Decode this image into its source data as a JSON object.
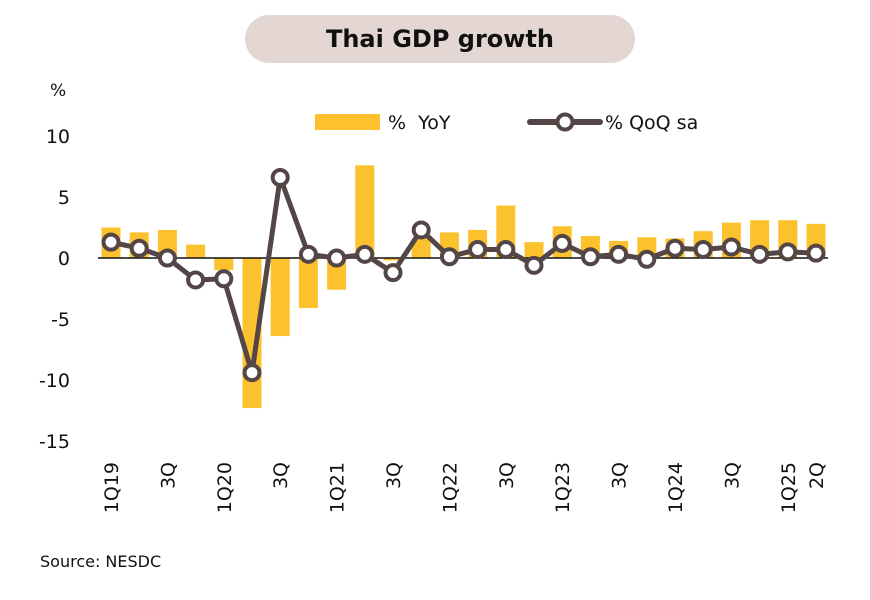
{
  "title": "Thai GDP growth",
  "source": "Source: NESDC",
  "colors": {
    "bar": "#fcc22d",
    "line": "#544646",
    "marker_fill": "#ffffff",
    "axis": "#111111"
  },
  "chart_data": {
    "type": "bar",
    "title": "Thai GDP growth",
    "ylabel": "%",
    "ylim": [
      -15,
      10
    ],
    "yticks": [
      10,
      5,
      0,
      -5,
      -10,
      -15
    ],
    "legend_position": "top",
    "quarters": [
      "1Q19",
      "2Q19",
      "3Q19",
      "4Q19",
      "1Q20",
      "2Q20",
      "3Q20",
      "4Q20",
      "1Q21",
      "2Q21",
      "3Q21",
      "4Q21",
      "1Q22",
      "2Q22",
      "3Q22",
      "4Q22",
      "1Q23",
      "2Q23",
      "3Q23",
      "4Q23",
      "1Q24",
      "2Q24",
      "3Q24",
      "4Q24",
      "1Q25",
      "2Q25"
    ],
    "x_tick_labels": [
      "1Q19",
      "",
      "3Q",
      "",
      "1Q20",
      "",
      "3Q",
      "",
      "1Q21",
      "",
      "3Q",
      "",
      "1Q22",
      "",
      "3Q",
      "",
      "1Q23",
      "",
      "3Q",
      "",
      "1Q24",
      "",
      "3Q",
      "",
      "1Q25",
      "2Q"
    ],
    "series": [
      {
        "name": "%  YoY",
        "type": "bar",
        "values": [
          2.5,
          2.1,
          2.3,
          1.1,
          -1.0,
          -12.3,
          -6.4,
          -4.1,
          -2.6,
          7.6,
          -0.2,
          1.6,
          2.1,
          2.3,
          4.3,
          1.3,
          2.6,
          1.8,
          1.4,
          1.7,
          1.6,
          2.2,
          2.9,
          3.1,
          3.1,
          2.8
        ]
      },
      {
        "name": "% QoQ sa",
        "type": "line",
        "values": [
          1.3,
          0.8,
          0.0,
          -1.8,
          -1.7,
          -9.4,
          6.6,
          0.3,
          0.0,
          0.3,
          -1.2,
          2.3,
          0.1,
          0.7,
          0.7,
          -0.6,
          1.2,
          0.1,
          0.3,
          -0.1,
          0.8,
          0.7,
          0.9,
          0.3,
          0.5,
          0.4
        ]
      }
    ]
  }
}
